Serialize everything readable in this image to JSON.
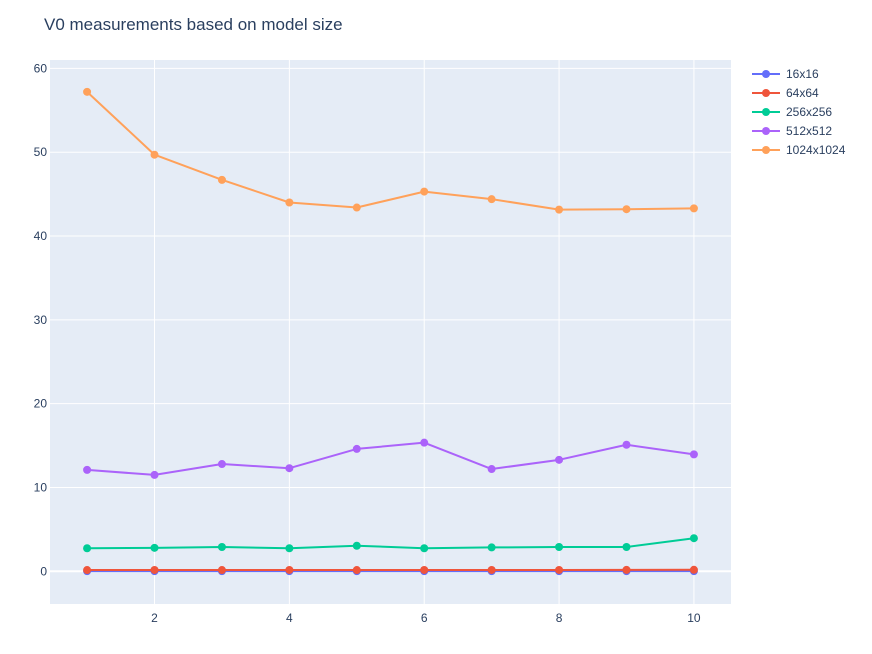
{
  "chart_data": {
    "type": "line",
    "title": "V0 measurements based on model size",
    "xlabel": "",
    "ylabel": "",
    "x": [
      1,
      2,
      3,
      4,
      5,
      6,
      7,
      8,
      9,
      10
    ],
    "xlim": [
      0.45,
      10.55
    ],
    "ylim": [
      -3.9,
      61
    ],
    "xticks": [
      2,
      4,
      6,
      8,
      10
    ],
    "yticks": [
      0,
      10,
      20,
      30,
      40,
      50,
      60
    ],
    "grid": true,
    "legend_position": "top-right",
    "series": [
      {
        "name": "16x16",
        "color": "#636efa",
        "values": [
          0.02,
          0.02,
          0.02,
          0.02,
          0.02,
          0.02,
          0.02,
          0.02,
          0.02,
          0.02
        ]
      },
      {
        "name": "64x64",
        "color": "#ef553b",
        "values": [
          0.15,
          0.16,
          0.15,
          0.16,
          0.15,
          0.16,
          0.16,
          0.16,
          0.17,
          0.18
        ]
      },
      {
        "name": "256x256",
        "color": "#00cc96",
        "values": [
          2.75,
          2.8,
          2.9,
          2.75,
          3.05,
          2.75,
          2.85,
          2.9,
          2.9,
          3.95
        ]
      },
      {
        "name": "512x512",
        "color": "#ab63fa",
        "values": [
          12.1,
          11.5,
          12.8,
          12.3,
          14.6,
          15.35,
          12.2,
          13.3,
          15.1,
          13.95
        ]
      },
      {
        "name": "1024x1024",
        "color": "#ffa15a",
        "values": [
          57.2,
          49.7,
          46.7,
          44.0,
          43.4,
          45.3,
          44.4,
          43.15,
          43.2,
          43.3
        ]
      }
    ]
  }
}
